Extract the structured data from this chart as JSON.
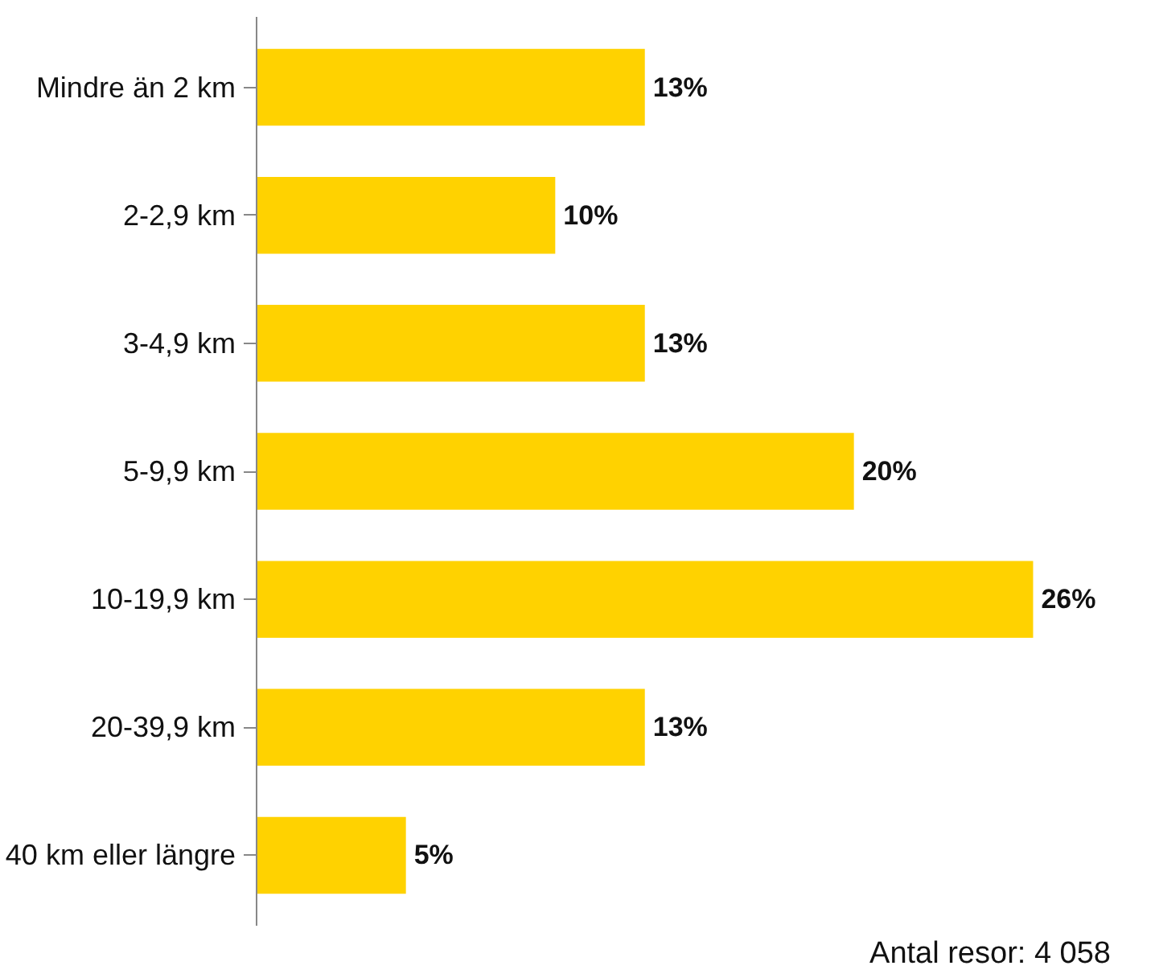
{
  "chart_data": {
    "type": "bar",
    "orientation": "horizontal",
    "categories": [
      "Mindre än 2 km",
      "2-2,9 km",
      "3-4,9 km",
      "5-9,9 km",
      "10-19,9 km",
      "20-39,9 km",
      "40 km eller längre"
    ],
    "values": [
      13,
      10,
      13,
      20,
      26,
      13,
      5
    ],
    "value_labels": [
      "13%",
      "10%",
      "13%",
      "20%",
      "26%",
      "13%",
      "5%"
    ],
    "color": "#ffd200",
    "grid": false,
    "annotations": [
      "Antal resor: 4 058"
    ]
  }
}
